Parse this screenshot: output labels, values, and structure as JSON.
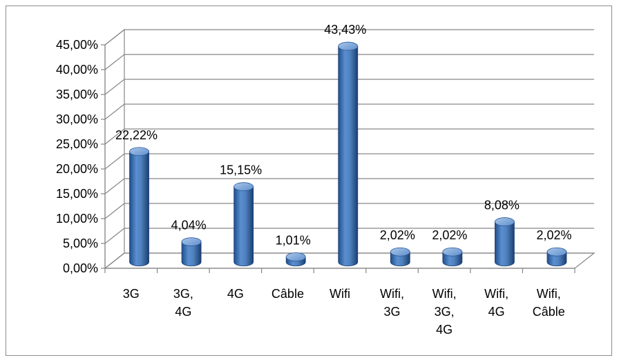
{
  "chart_data": {
    "type": "bar",
    "style": "3d-cylinder",
    "title": "",
    "xlabel": "",
    "ylabel": "",
    "ylim": [
      0,
      45
    ],
    "y_ticks": [
      0,
      5,
      10,
      15,
      20,
      25,
      30,
      35,
      40,
      45
    ],
    "y_tick_labels": [
      "0,00%",
      "5,00%",
      "10,00%",
      "15,00%",
      "20,00%",
      "25,00%",
      "30,00%",
      "35,00%",
      "40,00%",
      "45,00%"
    ],
    "grid": true,
    "legend": "none",
    "categories": [
      [
        "3G"
      ],
      [
        "3G,",
        "4G"
      ],
      [
        "4G"
      ],
      [
        "Câble"
      ],
      [
        "Wifi"
      ],
      [
        "Wifi,",
        "3G"
      ],
      [
        "Wifi,",
        "3G,",
        "4G"
      ],
      [
        "Wifi,",
        "4G"
      ],
      [
        "Wifi,",
        "Câble"
      ]
    ],
    "values": [
      22.22,
      4.04,
      15.15,
      1.01,
      43.43,
      2.02,
      2.02,
      8.08,
      2.02
    ],
    "data_labels": [
      "22,22%",
      "4,04%",
      "15,15%",
      "1,01%",
      "43,43%",
      "2,02%",
      "2,02%",
      "8,08%",
      "2,02%"
    ],
    "colors": {
      "bar_main": "#4f81bd",
      "bar_dark": "#1f4e8c",
      "bar_light": "#8db3e2",
      "grid": "#868686",
      "frame": "#8c8c8c"
    }
  }
}
